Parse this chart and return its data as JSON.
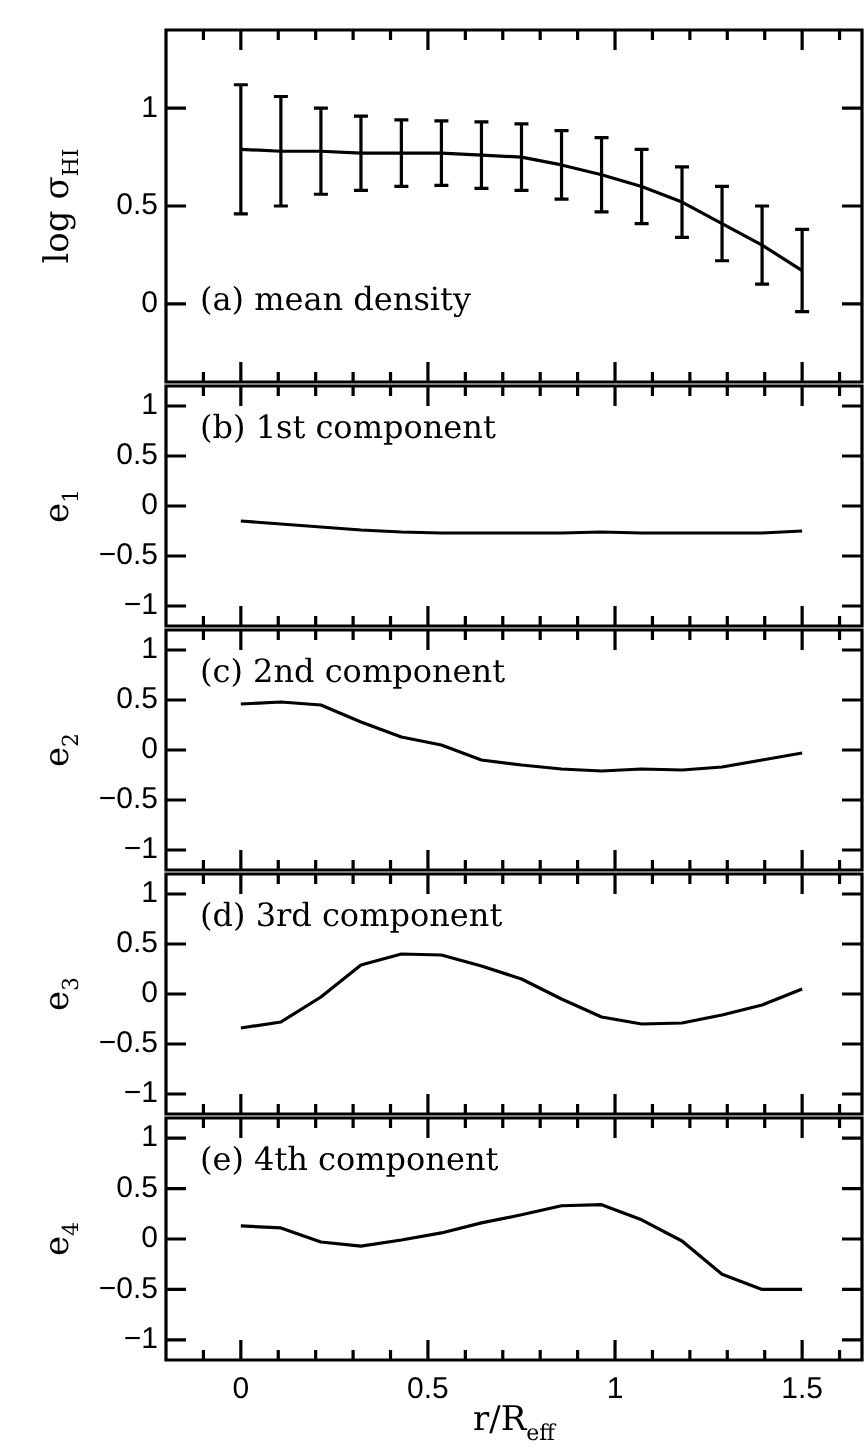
{
  "chart_data": [
    {
      "type": "line",
      "ylabel": "log σ$_{HI}$",
      "annotations": [
        "(a) mean density"
      ],
      "x": [
        0,
        0.107,
        0.214,
        0.321,
        0.429,
        0.536,
        0.643,
        0.75,
        0.857,
        0.964,
        1.071,
        1.179,
        1.286,
        1.393,
        1.5
      ],
      "series": [
        {
          "color": "#000000",
          "values": [
            0.79,
            0.78,
            0.78,
            0.77,
            0.77,
            0.77,
            0.76,
            0.75,
            0.71,
            0.66,
            0.6,
            0.52,
            0.41,
            0.3,
            0.17
          ],
          "errors": [
            0.33,
            0.28,
            0.22,
            0.19,
            0.17,
            0.165,
            0.17,
            0.17,
            0.175,
            0.19,
            0.19,
            0.18,
            0.19,
            0.2,
            0.21
          ]
        }
      ],
      "xlim": [
        -0.2,
        1.66
      ],
      "xticks": [
        {
          "value": -0.1,
          "label": null
        },
        0,
        {
          "value": 0.1,
          "label": null
        },
        {
          "value": 0.2,
          "label": null
        },
        {
          "value": 0.3,
          "label": null
        },
        {
          "value": 0.4,
          "label": null
        },
        0.5,
        {
          "value": 0.6,
          "label": null
        },
        {
          "value": 0.7,
          "label": null
        },
        {
          "value": 0.8,
          "label": null
        },
        {
          "value": 0.9,
          "label": null
        },
        1,
        {
          "value": 1.1,
          "label": null
        },
        {
          "value": 1.2,
          "label": null
        },
        {
          "value": 1.3,
          "label": null
        },
        {
          "value": 1.4,
          "label": null
        },
        1.5,
        {
          "value": 1.6,
          "label": null
        }
      ],
      "ylim": [
        -0.4,
        1.4
      ],
      "yticks": [
        0,
        0.5,
        1
      ],
      "tick_labels": "y"
    },
    {
      "type": "line",
      "ylabel": "e$_{1}$",
      "annotations": [
        "(b) 1st component"
      ],
      "x": [
        0,
        0.107,
        0.214,
        0.321,
        0.429,
        0.536,
        0.643,
        0.75,
        0.857,
        0.964,
        1.071,
        1.179,
        1.286,
        1.393,
        1.5
      ],
      "series": [
        {
          "color": "#000000",
          "values": [
            -0.15,
            -0.18,
            -0.21,
            -0.24,
            -0.26,
            -0.27,
            -0.27,
            -0.27,
            -0.27,
            -0.26,
            -0.27,
            -0.27,
            -0.27,
            -0.27,
            -0.25
          ]
        }
      ],
      "xlim": [
        -0.2,
        1.66
      ],
      "xticks": [
        {
          "value": -0.1,
          "label": null
        },
        0,
        {
          "value": 0.1,
          "label": null
        },
        {
          "value": 0.2,
          "label": null
        },
        {
          "value": 0.3,
          "label": null
        },
        {
          "value": 0.4,
          "label": null
        },
        0.5,
        {
          "value": 0.6,
          "label": null
        },
        {
          "value": 0.7,
          "label": null
        },
        {
          "value": 0.8,
          "label": null
        },
        {
          "value": 0.9,
          "label": null
        },
        1,
        {
          "value": 1.1,
          "label": null
        },
        {
          "value": 1.2,
          "label": null
        },
        {
          "value": 1.3,
          "label": null
        },
        {
          "value": 1.4,
          "label": null
        },
        1.5,
        {
          "value": 1.6,
          "label": null
        }
      ],
      "ylim": [
        -1.2,
        1.2
      ],
      "yticks": [
        -1,
        -0.5,
        0,
        0.5,
        1
      ],
      "tick_labels": "y"
    },
    {
      "type": "line",
      "ylabel": "e$_{2}$",
      "annotations": [
        "(c) 2nd component"
      ],
      "x": [
        0,
        0.107,
        0.214,
        0.321,
        0.429,
        0.536,
        0.643,
        0.75,
        0.857,
        0.964,
        1.071,
        1.179,
        1.286,
        1.393,
        1.5
      ],
      "series": [
        {
          "color": "#000000",
          "values": [
            0.46,
            0.48,
            0.45,
            0.28,
            0.13,
            0.05,
            -0.1,
            -0.15,
            -0.19,
            -0.21,
            -0.19,
            -0.2,
            -0.17,
            -0.1,
            -0.03
          ]
        }
      ],
      "xlim": [
        -0.2,
        1.66
      ],
      "xticks": [
        {
          "value": -0.1,
          "label": null
        },
        0,
        {
          "value": 0.1,
          "label": null
        },
        {
          "value": 0.2,
          "label": null
        },
        {
          "value": 0.3,
          "label": null
        },
        {
          "value": 0.4,
          "label": null
        },
        0.5,
        {
          "value": 0.6,
          "label": null
        },
        {
          "value": 0.7,
          "label": null
        },
        {
          "value": 0.8,
          "label": null
        },
        {
          "value": 0.9,
          "label": null
        },
        1,
        {
          "value": 1.1,
          "label": null
        },
        {
          "value": 1.2,
          "label": null
        },
        {
          "value": 1.3,
          "label": null
        },
        {
          "value": 1.4,
          "label": null
        },
        1.5,
        {
          "value": 1.6,
          "label": null
        }
      ],
      "ylim": [
        -1.2,
        1.2
      ],
      "yticks": [
        -1,
        -0.5,
        0,
        0.5,
        1
      ],
      "tick_labels": "y"
    },
    {
      "type": "line",
      "ylabel": "e$_{3}$",
      "annotations": [
        "(d) 3rd component"
      ],
      "x": [
        0,
        0.107,
        0.214,
        0.321,
        0.429,
        0.536,
        0.643,
        0.75,
        0.857,
        0.964,
        1.071,
        1.179,
        1.286,
        1.393,
        1.5
      ],
      "series": [
        {
          "color": "#000000",
          "values": [
            -0.34,
            -0.28,
            -0.03,
            0.29,
            0.4,
            0.39,
            0.28,
            0.15,
            -0.05,
            -0.23,
            -0.3,
            -0.29,
            -0.21,
            -0.11,
            0.05
          ]
        }
      ],
      "xlim": [
        -0.2,
        1.66
      ],
      "xticks": [
        {
          "value": -0.1,
          "label": null
        },
        0,
        {
          "value": 0.1,
          "label": null
        },
        {
          "value": 0.2,
          "label": null
        },
        {
          "value": 0.3,
          "label": null
        },
        {
          "value": 0.4,
          "label": null
        },
        0.5,
        {
          "value": 0.6,
          "label": null
        },
        {
          "value": 0.7,
          "label": null
        },
        {
          "value": 0.8,
          "label": null
        },
        {
          "value": 0.9,
          "label": null
        },
        1,
        {
          "value": 1.1,
          "label": null
        },
        {
          "value": 1.2,
          "label": null
        },
        {
          "value": 1.3,
          "label": null
        },
        {
          "value": 1.4,
          "label": null
        },
        1.5,
        {
          "value": 1.6,
          "label": null
        }
      ],
      "ylim": [
        -1.2,
        1.2
      ],
      "yticks": [
        -1,
        -0.5,
        0,
        0.5,
        1
      ],
      "tick_labels": "y"
    },
    {
      "type": "line",
      "ylabel": "e$_{4}$",
      "xlabel": "r/R$_{eff}$",
      "annotations": [
        "(e) 4th component"
      ],
      "x": [
        0,
        0.107,
        0.214,
        0.321,
        0.429,
        0.536,
        0.643,
        0.75,
        0.857,
        0.964,
        1.071,
        1.179,
        1.286,
        1.393,
        1.5
      ],
      "series": [
        {
          "color": "#000000",
          "values": [
            0.13,
            0.11,
            -0.03,
            -0.07,
            -0.01,
            0.06,
            0.16,
            0.24,
            0.33,
            0.34,
            0.19,
            -0.02,
            -0.35,
            -0.5,
            -0.5
          ]
        }
      ],
      "xlim": [
        -0.2,
        1.66
      ],
      "xticks": [
        {
          "value": -0.1,
          "label": null
        },
        0,
        {
          "value": 0.1,
          "label": null
        },
        {
          "value": 0.2,
          "label": null
        },
        {
          "value": 0.3,
          "label": null
        },
        {
          "value": 0.4,
          "label": null
        },
        0.5,
        {
          "value": 0.6,
          "label": null
        },
        {
          "value": 0.7,
          "label": null
        },
        {
          "value": 0.8,
          "label": null
        },
        {
          "value": 0.9,
          "label": null
        },
        1,
        {
          "value": 1.1,
          "label": null
        },
        {
          "value": 1.2,
          "label": null
        },
        {
          "value": 1.3,
          "label": null
        },
        {
          "value": 1.4,
          "label": null
        },
        1.5,
        {
          "value": 1.6,
          "label": null
        }
      ],
      "ylim": [
        -1.2,
        1.2
      ],
      "yticks": [
        -1,
        -0.5,
        0,
        0.5,
        1
      ]
    }
  ]
}
